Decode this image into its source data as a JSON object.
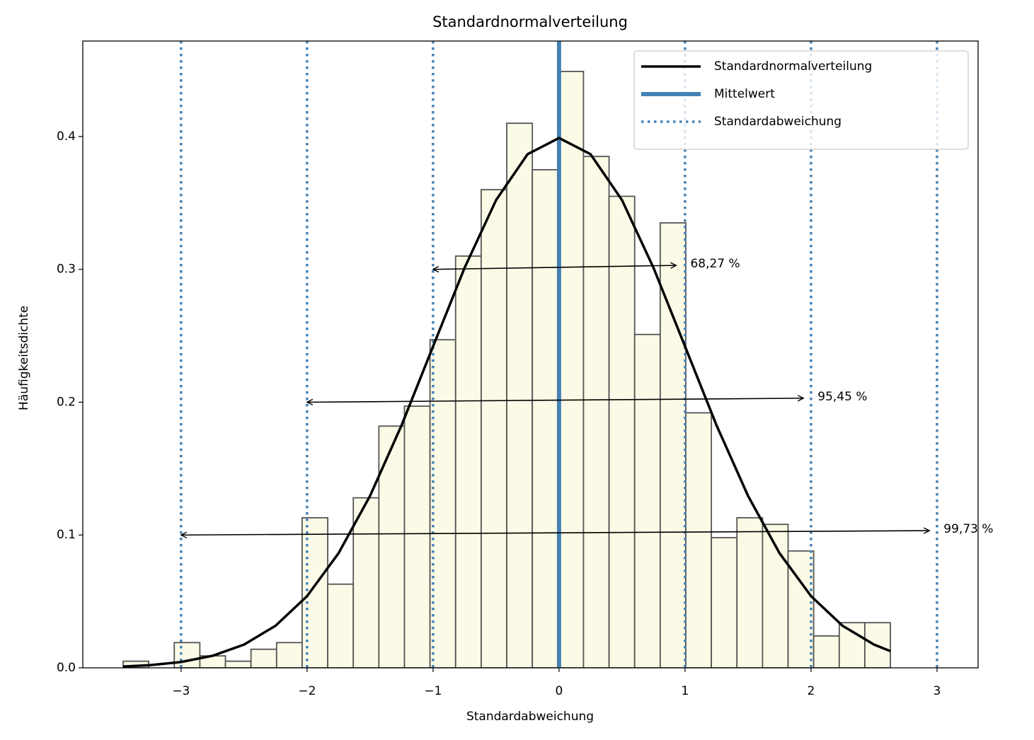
{
  "chart_data": {
    "type": "histogram",
    "title": "Standardnormalverteilung",
    "xlabel": "Standardabweichung",
    "ylabel": "Häufigkeitsdichte",
    "xlim": [
      -3.78,
      3.326
    ],
    "ylim": [
      0,
      0.4719
    ],
    "xticks": [
      {
        "value": -3,
        "label": "−3"
      },
      {
        "value": -2,
        "label": "−2"
      },
      {
        "value": -1,
        "label": "−1"
      },
      0,
      1,
      2,
      3
    ],
    "yticks": [
      {
        "value": 0,
        "label": "0.0"
      },
      0.1,
      0.2,
      0.3,
      0.4
    ],
    "histogram": {
      "color": "#fafae6",
      "edgecolor": "#555555",
      "bins": [
        -3.46,
        -3.257,
        -3.054,
        -2.851,
        -2.648,
        -2.445,
        -2.242,
        -2.039,
        -1.836,
        -1.633,
        -1.43,
        -1.227,
        -1.024,
        -0.821,
        -0.618,
        -0.415,
        -0.212,
        -0.009,
        0.194,
        0.397,
        0.6,
        0.803,
        1.006,
        1.209,
        1.412,
        1.615,
        1.818,
        2.021,
        2.224,
        2.427,
        2.63
      ],
      "values": [
        0.005,
        0,
        0.019,
        0.009,
        0.005,
        0.014,
        0.019,
        0.113,
        0.063,
        0.128,
        0.182,
        0.197,
        0.247,
        0.31,
        0.36,
        0.41,
        0.375,
        0.449,
        0.385,
        0.355,
        0.251,
        0.335,
        0.192,
        0.098,
        0.113,
        0.108,
        0.088,
        0.024,
        0.034,
        0.034
      ]
    },
    "series": [
      {
        "name": "Standardnormalverteilung",
        "color": "#000000",
        "x": [
          -3.46,
          -3.25,
          -3.0,
          -2.75,
          -2.5,
          -2.25,
          -2.0,
          -1.75,
          -1.5,
          -1.25,
          -1.0,
          -0.75,
          -0.5,
          -0.25,
          0,
          0.25,
          0.5,
          0.75,
          1.0,
          1.25,
          1.5,
          1.75,
          2.0,
          2.25,
          2.5,
          2.63
        ],
        "values": [
          0.001,
          0.002,
          0.0044,
          0.0091,
          0.0175,
          0.0317,
          0.054,
          0.0863,
          0.1295,
          0.1826,
          0.242,
          0.3011,
          0.3521,
          0.3867,
          0.3989,
          0.3867,
          0.3521,
          0.3011,
          0.242,
          0.1826,
          0.1295,
          0.0863,
          0.054,
          0.0317,
          0.0175,
          0.0126
        ]
      }
    ],
    "vlines": [
      {
        "name": "Mittelwert",
        "color": "#4682b4",
        "style": "solid",
        "x": [
          0
        ]
      },
      {
        "name": "Standardabweichung",
        "color": "#4682b4",
        "style": "dotted",
        "x": [
          -3,
          -2,
          -1,
          1,
          2,
          3
        ]
      }
    ],
    "annotations": [
      {
        "text": "68,27 %",
        "from": [
          -1,
          0.3
        ],
        "to": [
          0.93,
          0.303
        ]
      },
      {
        "text": "95,45 %",
        "from": [
          -2,
          0.2
        ],
        "to": [
          1.94,
          0.203
        ]
      },
      {
        "text": "99,73 %",
        "from": [
          -3,
          0.1
        ],
        "to": [
          2.94,
          0.1033
        ]
      }
    ],
    "legend": "upper right"
  }
}
